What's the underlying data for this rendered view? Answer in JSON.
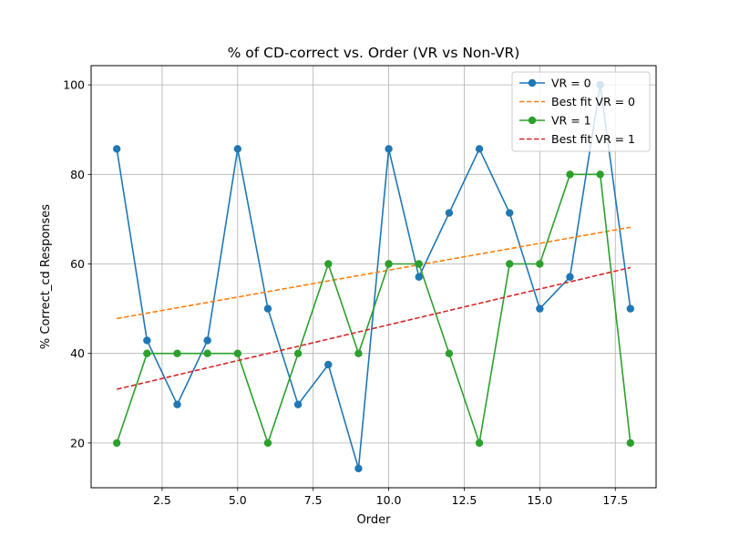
{
  "chart_data": {
    "type": "line",
    "title": "% of CD-correct vs. Order (VR vs Non-VR)",
    "xlabel": "Order",
    "ylabel": "% Correct_cd Responses",
    "xlim": [
      0.15,
      18.85
    ],
    "ylim": [
      10.0,
      104.3
    ],
    "x_ticks": [
      2.5,
      5.0,
      7.5,
      10.0,
      12.5,
      15.0,
      17.5
    ],
    "x_tick_labels": [
      "2.5",
      "5.0",
      "7.5",
      "10.0",
      "12.5",
      "15.0",
      "17.5"
    ],
    "y_ticks": [
      20,
      40,
      60,
      80,
      100
    ],
    "y_tick_labels": [
      "20",
      "40",
      "60",
      "80",
      "100"
    ],
    "grid": true,
    "legend_position": "top-right",
    "series": [
      {
        "name": "VR = 0",
        "kind": "line-markers",
        "color": "#1f77b4",
        "x": [
          1,
          2,
          3,
          4,
          5,
          6,
          7,
          8,
          9,
          10,
          11,
          12,
          13,
          14,
          15,
          16,
          17,
          18
        ],
        "values": [
          85.7,
          42.9,
          28.6,
          42.9,
          85.7,
          50.0,
          28.6,
          37.5,
          14.3,
          85.7,
          57.1,
          71.4,
          85.7,
          71.4,
          50.0,
          57.1,
          100.0,
          50.0
        ]
      },
      {
        "name": "Best fit VR = 0",
        "kind": "dashed",
        "color": "#ff7f0e",
        "x": [
          1,
          18
        ],
        "values": [
          47.8,
          68.2
        ]
      },
      {
        "name": "VR = 1",
        "kind": "line-markers",
        "color": "#2ca02c",
        "x": [
          1,
          2,
          3,
          4,
          5,
          6,
          7,
          8,
          9,
          10,
          11,
          12,
          13,
          14,
          15,
          16,
          17,
          18
        ],
        "values": [
          20,
          40,
          40,
          40,
          40,
          20,
          40,
          60,
          40,
          60,
          60,
          40,
          20,
          60,
          60,
          80,
          80,
          20
        ]
      },
      {
        "name": "Best fit VR = 1",
        "kind": "dashed",
        "color": "#d62728",
        "x": [
          1,
          18
        ],
        "values": [
          32.0,
          59.2
        ]
      }
    ]
  }
}
